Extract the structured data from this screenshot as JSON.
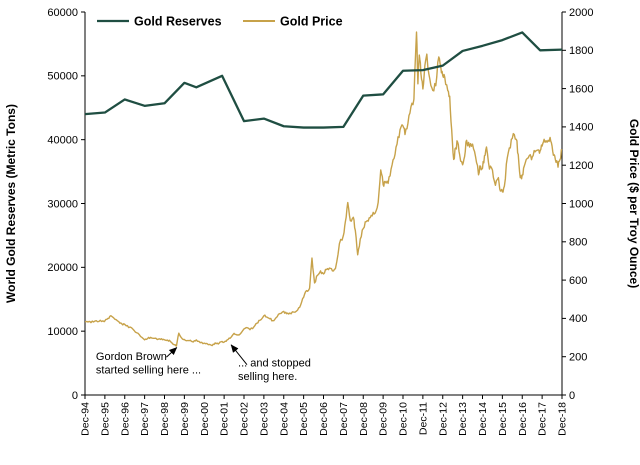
{
  "chart_data": {
    "type": "line",
    "title": "",
    "grid": false,
    "x_tick_labels": [
      "Dec-94",
      "Dec-95",
      "Dec-96",
      "Dec-97",
      "Dec-98",
      "Dec-99",
      "Dec-00",
      "Dec-01",
      "Dec-02",
      "Dec-03",
      "Dec-04",
      "Dec-05",
      "Dec-06",
      "Dec-07",
      "Dec-08",
      "Dec-09",
      "Dec-10",
      "Dec-11",
      "Dec-12",
      "Dec-13",
      "Dec-14",
      "Dec-15",
      "Dec-16",
      "Dec-17",
      "Dec-18"
    ],
    "x_range_years": [
      0,
      24
    ],
    "left_axis": {
      "title": "World Gold Reserves (Metric Tons)",
      "min": 0,
      "max": 60000,
      "step": 10000
    },
    "right_axis": {
      "title": "Gold Price ($ per Troy Ounce)",
      "min": 0,
      "max": 2000,
      "step": 200
    },
    "legend": {
      "position": "top-inside",
      "items": [
        {
          "label": "Gold Reserves",
          "color": "#1f4e42"
        },
        {
          "label": "Gold Price",
          "color": "#c7a24a"
        }
      ]
    },
    "series": [
      {
        "name": "Gold Reserves",
        "axis": "left",
        "color": "#1f4e42",
        "line_width": 2.3,
        "points": [
          [
            0,
            44000
          ],
          [
            1,
            44250
          ],
          [
            2,
            46300
          ],
          [
            3,
            45300
          ],
          [
            4,
            45700
          ],
          [
            5,
            48900
          ],
          [
            5.6,
            48200
          ],
          [
            6.9,
            50000
          ],
          [
            8,
            42900
          ],
          [
            9,
            43300
          ],
          [
            10,
            42100
          ],
          [
            11,
            41900
          ],
          [
            12,
            41900
          ],
          [
            13,
            42000
          ],
          [
            14,
            46900
          ],
          [
            15,
            47100
          ],
          [
            16,
            50800
          ],
          [
            17,
            50900
          ],
          [
            18,
            51600
          ],
          [
            19,
            53900
          ],
          [
            20,
            54700
          ],
          [
            21,
            55600
          ],
          [
            22,
            56800
          ],
          [
            22.9,
            54000
          ],
          [
            24,
            54100
          ]
        ]
      },
      {
        "name": "Gold Price",
        "axis": "right",
        "color": "#c7a24a",
        "line_width": 1.4,
        "noise_pct": 1.5,
        "points": [
          [
            0,
            383
          ],
          [
            0.15,
            381
          ],
          [
            0.3,
            378
          ],
          [
            0.5,
            386
          ],
          [
            0.7,
            384
          ],
          [
            0.9,
            387
          ],
          [
            1,
            387
          ],
          [
            1.15,
            400
          ],
          [
            1.3,
            414
          ],
          [
            1.5,
            396
          ],
          [
            1.7,
            383
          ],
          [
            1.85,
            372
          ],
          [
            2,
            369
          ],
          [
            2.2,
            352
          ],
          [
            2.4,
            345
          ],
          [
            2.6,
            325
          ],
          [
            2.8,
            305
          ],
          [
            3,
            288
          ],
          [
            3.15,
            295
          ],
          [
            3.3,
            301
          ],
          [
            3.5,
            296
          ],
          [
            3.7,
            292
          ],
          [
            3.85,
            294
          ],
          [
            4,
            288
          ],
          [
            4.15,
            287
          ],
          [
            4.3,
            279
          ],
          [
            4.5,
            262
          ],
          [
            4.6,
            256
          ],
          [
            4.72,
            323
          ],
          [
            4.85,
            299
          ],
          [
            5,
            290
          ],
          [
            5.15,
            284
          ],
          [
            5.3,
            286
          ],
          [
            5.45,
            277
          ],
          [
            5.6,
            288
          ],
          [
            5.8,
            273
          ],
          [
            6,
            271
          ],
          [
            6.2,
            263
          ],
          [
            6.4,
            258
          ],
          [
            6.55,
            272
          ],
          [
            6.7,
            266
          ],
          [
            6.85,
            278
          ],
          [
            7,
            276
          ],
          [
            7.15,
            288
          ],
          [
            7.3,
            296
          ],
          [
            7.5,
            322
          ],
          [
            7.65,
            313
          ],
          [
            7.8,
            318
          ],
          [
            8,
            345
          ],
          [
            8.15,
            352
          ],
          [
            8.3,
            341
          ],
          [
            8.5,
            356
          ],
          [
            8.65,
            375
          ],
          [
            8.8,
            390
          ],
          [
            9,
            414
          ],
          [
            9.15,
            407
          ],
          [
            9.3,
            398
          ],
          [
            9.45,
            388
          ],
          [
            9.6,
            402
          ],
          [
            9.8,
            425
          ],
          [
            10,
            437
          ],
          [
            10.15,
            424
          ],
          [
            10.3,
            428
          ],
          [
            10.5,
            433
          ],
          [
            10.7,
            444
          ],
          [
            10.85,
            470
          ],
          [
            11,
            510
          ],
          [
            11.15,
            545
          ],
          [
            11.3,
            557
          ],
          [
            11.42,
            715
          ],
          [
            11.55,
            585
          ],
          [
            11.7,
            625
          ],
          [
            11.85,
            648
          ],
          [
            12,
            632
          ],
          [
            12.15,
            655
          ],
          [
            12.3,
            663
          ],
          [
            12.45,
            648
          ],
          [
            12.6,
            660
          ],
          [
            12.8,
            790
          ],
          [
            13,
            833
          ],
          [
            13.1,
            905
          ],
          [
            13.22,
            1005
          ],
          [
            13.35,
            910
          ],
          [
            13.5,
            928
          ],
          [
            13.6,
            860
          ],
          [
            13.72,
            732
          ],
          [
            13.85,
            815
          ],
          [
            14,
            869
          ],
          [
            14.15,
            905
          ],
          [
            14.3,
            925
          ],
          [
            14.45,
            935
          ],
          [
            14.6,
            950
          ],
          [
            14.75,
            1005
          ],
          [
            14.88,
            1175
          ],
          [
            15,
            1098
          ],
          [
            15.1,
            1115
          ],
          [
            15.25,
            1105
          ],
          [
            15.4,
            1180
          ],
          [
            15.55,
            1235
          ],
          [
            15.7,
            1310
          ],
          [
            15.85,
            1385
          ],
          [
            16,
            1405
          ],
          [
            16.1,
            1360
          ],
          [
            16.25,
            1420
          ],
          [
            16.4,
            1505
          ],
          [
            16.55,
            1545
          ],
          [
            16.68,
            1895
          ],
          [
            16.75,
            1625
          ],
          [
            16.82,
            1775
          ],
          [
            16.9,
            1680
          ],
          [
            17,
            1598
          ],
          [
            17.1,
            1720
          ],
          [
            17.2,
            1780
          ],
          [
            17.35,
            1650
          ],
          [
            17.5,
            1590
          ],
          [
            17.65,
            1615
          ],
          [
            17.8,
            1765
          ],
          [
            17.9,
            1715
          ],
          [
            18,
            1668
          ],
          [
            18.1,
            1660
          ],
          [
            18.25,
            1590
          ],
          [
            18.35,
            1560
          ],
          [
            18.45,
            1385
          ],
          [
            18.55,
            1230
          ],
          [
            18.65,
            1290
          ],
          [
            18.75,
            1320
          ],
          [
            18.85,
            1255
          ],
          [
            19,
            1202
          ],
          [
            19.1,
            1245
          ],
          [
            19.2,
            1330
          ],
          [
            19.35,
            1295
          ],
          [
            19.5,
            1310
          ],
          [
            19.65,
            1245
          ],
          [
            19.8,
            1150
          ],
          [
            19.9,
            1195
          ],
          [
            20,
            1184
          ],
          [
            20.1,
            1250
          ],
          [
            20.2,
            1295
          ],
          [
            20.35,
            1180
          ],
          [
            20.5,
            1175
          ],
          [
            20.65,
            1095
          ],
          [
            20.8,
            1135
          ],
          [
            20.9,
            1065
          ],
          [
            21,
            1061
          ],
          [
            21.1,
            1090
          ],
          [
            21.25,
            1240
          ],
          [
            21.4,
            1290
          ],
          [
            21.55,
            1365
          ],
          [
            21.7,
            1335
          ],
          [
            21.8,
            1255
          ],
          [
            21.9,
            1135
          ],
          [
            22,
            1150
          ],
          [
            22.1,
            1195
          ],
          [
            22.25,
            1235
          ],
          [
            22.4,
            1255
          ],
          [
            22.5,
            1242
          ],
          [
            22.65,
            1270
          ],
          [
            22.8,
            1280
          ],
          [
            22.9,
            1275
          ],
          [
            23,
            1300
          ],
          [
            23.1,
            1335
          ],
          [
            23.25,
            1320
          ],
          [
            23.4,
            1345
          ],
          [
            23.5,
            1300
          ],
          [
            23.6,
            1255
          ],
          [
            23.7,
            1215
          ],
          [
            23.8,
            1190
          ],
          [
            23.9,
            1230
          ],
          [
            24,
            1280
          ]
        ]
      }
    ],
    "annotations": [
      {
        "name": "gordon-brown-started",
        "lines": [
          "Gordon Brown",
          "started selling here ..."
        ],
        "text_at": {
          "year": 0.55,
          "price": 183
        },
        "arrow_from": {
          "year": 4.1,
          "price": 198
        },
        "arrow_to": {
          "year": 4.62,
          "price": 248
        }
      },
      {
        "name": "stopped-selling",
        "lines": [
          "... and stopped",
          "selling here."
        ],
        "text_at": {
          "year": 7.7,
          "price": 148
        },
        "arrow_from": {
          "year": 8.15,
          "price": 158
        },
        "arrow_to": {
          "year": 7.35,
          "price": 262
        }
      }
    ]
  }
}
